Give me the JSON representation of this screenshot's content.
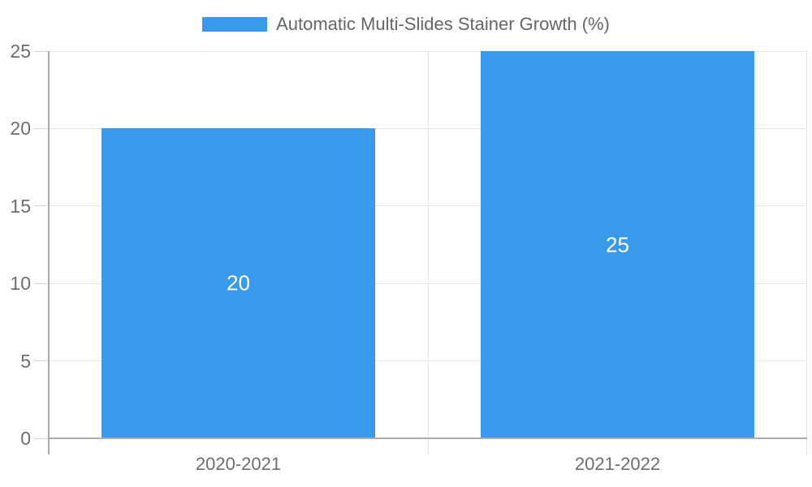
{
  "chart_data": {
    "type": "bar",
    "title": "Automatic Multi-Slides Stainer Growth (%)",
    "categories": [
      "2020-2021",
      "2021-2022"
    ],
    "values": [
      20,
      25
    ],
    "bar_labels": [
      "20",
      "25"
    ],
    "xlabel": "",
    "ylabel": "",
    "ylim": [
      0,
      25
    ],
    "yticks": [
      0,
      5,
      10,
      15,
      20,
      25
    ],
    "grid": true,
    "legend_position": "top"
  },
  "colors": {
    "bar": "#399AEC",
    "grid": "#E6E6E6",
    "tick": "#D6D6D6",
    "baseline": "#ABABAB",
    "axis_line": "#AAAAAA",
    "axis_text": "#6E6E6E",
    "bar_label_text": "#FFFFFF",
    "background": "#FFFFFF"
  }
}
